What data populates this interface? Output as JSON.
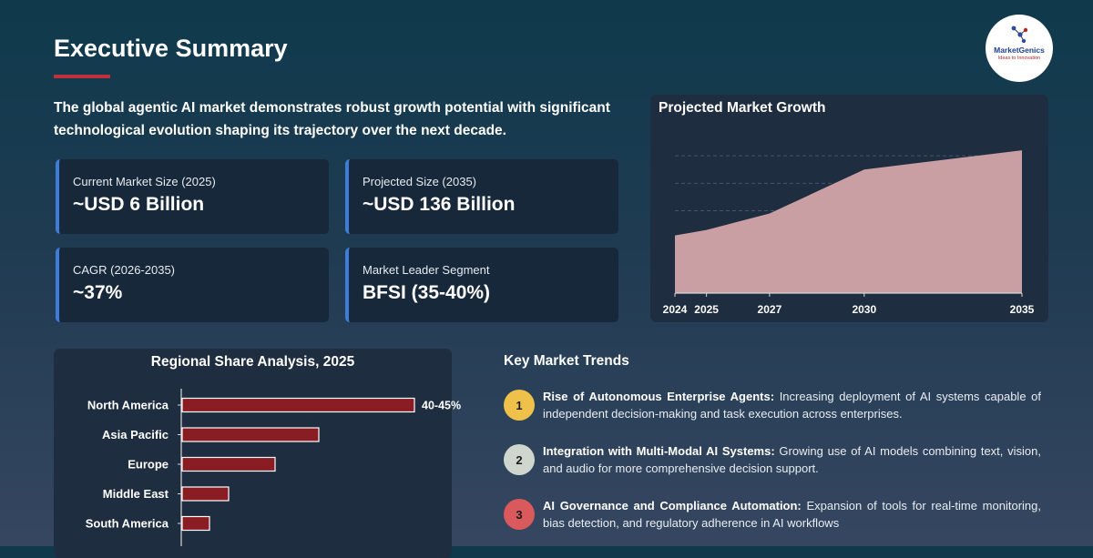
{
  "header": {
    "title": "Executive Summary",
    "intro": "The global agentic AI market demonstrates robust growth potential with significant technological evolution shaping its trajectory over the next decade."
  },
  "logo": {
    "name": "MarketGenics",
    "tagline": "Ideas to Innovation"
  },
  "stats": [
    {
      "label": "Current Market Size (2025)",
      "value": "~USD 6 Billion"
    },
    {
      "label": "Projected Size (2035)",
      "value": "~USD 136 Billion"
    },
    {
      "label": "CAGR (2026-2035)",
      "value": "~37%"
    },
    {
      "label": "Market Leader Segment",
      "value": "BFSI (35-40%)"
    }
  ],
  "colors": {
    "accent_red": "#c0303a",
    "stat_border": "#3f7bd8",
    "area_fill": "#c99fa4",
    "bar_fill": "#8a1c24"
  },
  "chart_data": [
    {
      "type": "area",
      "title": "Projected Market Growth",
      "x": [
        "2024",
        "2025",
        "2027",
        "2030",
        "2035"
      ],
      "values": [
        21,
        23,
        29,
        45,
        52
      ],
      "ylim": [
        0,
        60
      ],
      "grid": true,
      "legend": "none"
    },
    {
      "type": "bar",
      "orientation": "horizontal",
      "title": "Regional Share Analysis, 2025",
      "categories": [
        "North America",
        "Asia Pacific",
        "Europe",
        "Middle East",
        "South America"
      ],
      "values": [
        42.5,
        25,
        17,
        8.5,
        5
      ],
      "data_labels": [
        "40-45%",
        "",
        "",
        "",
        ""
      ],
      "xlim": [
        0,
        50
      ]
    }
  ],
  "trends": {
    "title": "Key Market Trends",
    "items": [
      {
        "num": "1",
        "color": "#efc04a",
        "heading": "Rise of Autonomous Enterprise Agents:",
        "text": "Increasing deployment of AI systems capable of independent decision-making and task execution across enterprises."
      },
      {
        "num": "2",
        "color": "#cfd6cd",
        "heading": "Integration with Multi-Modal AI Systems:",
        "text": "Growing use of AI models combining text, vision, and audio for more comprehensive decision support."
      },
      {
        "num": "3",
        "color": "#d9595c",
        "heading": "AI Governance and Compliance Automation:",
        "text": "Expansion of tools for real-time monitoring, bias detection, and regulatory adherence in AI workflows"
      }
    ]
  }
}
